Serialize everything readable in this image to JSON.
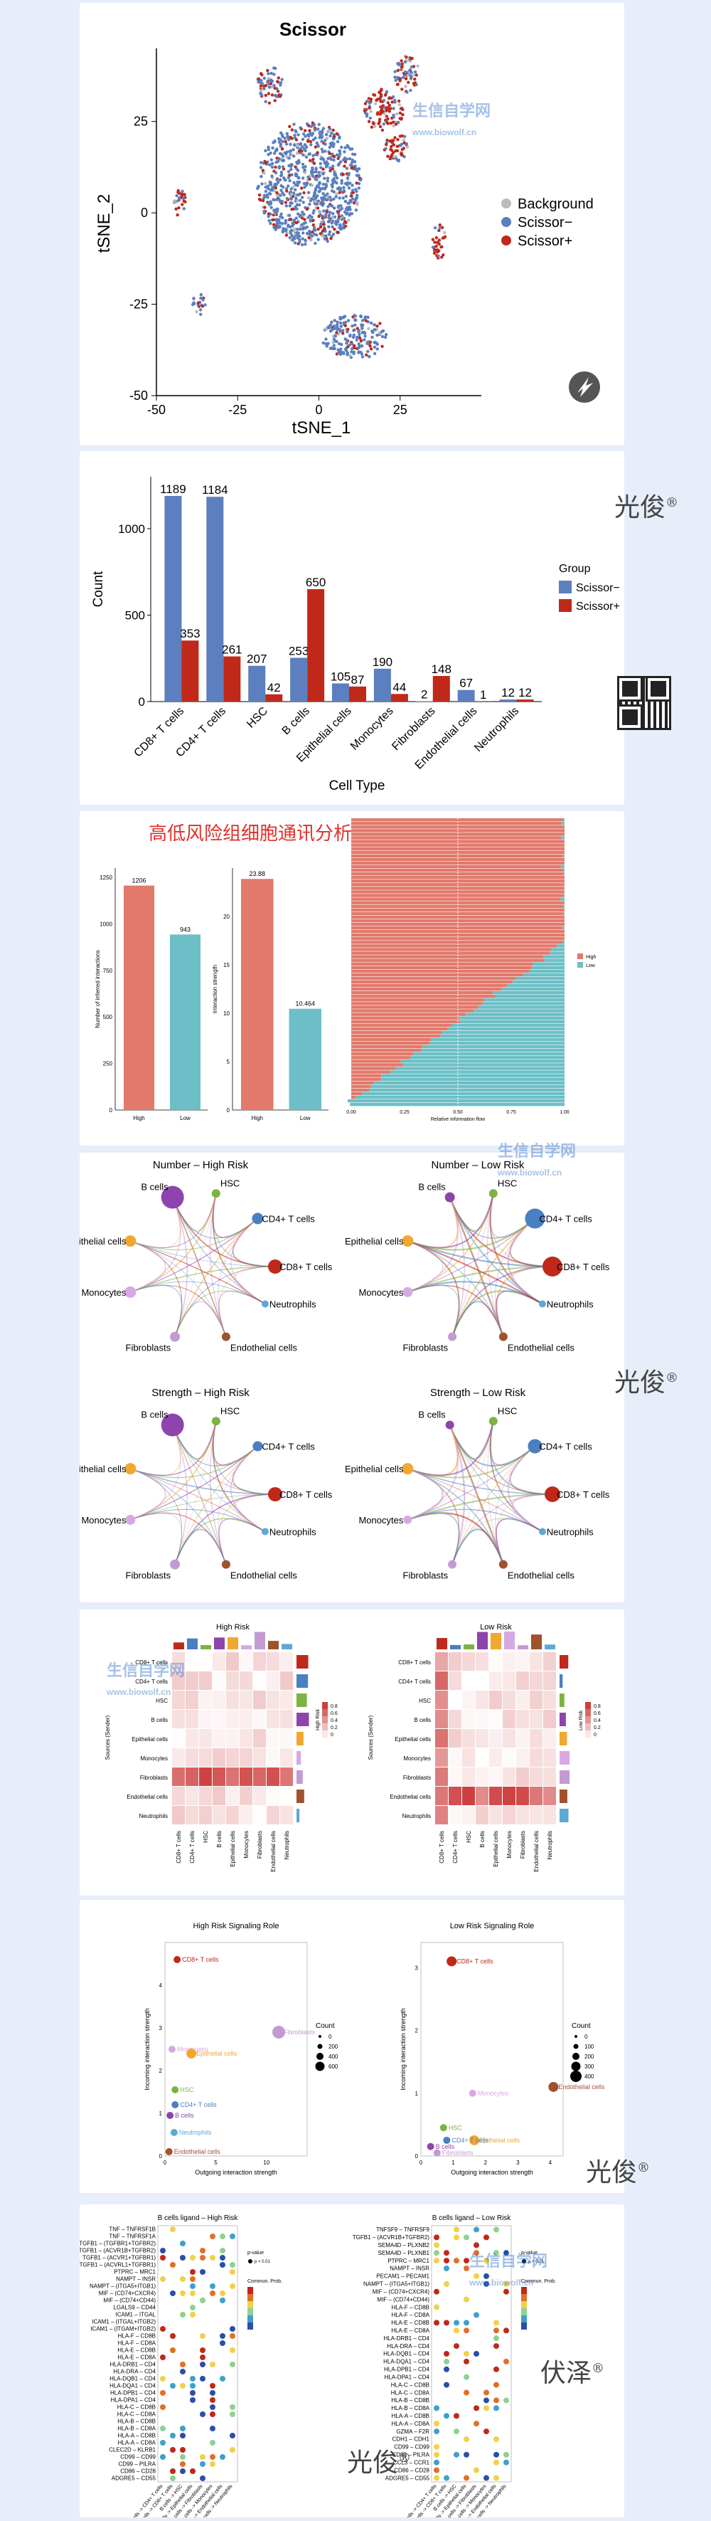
{
  "watermarks": {
    "brand1": "光俊",
    "brand2": "伏泽",
    "reg": "®",
    "site": "生信自学网",
    "site_url": "www.biowolf.cn"
  },
  "colors": {
    "blue": "#5b7fbf",
    "red": "#c0281a",
    "grey": "#bbbbbb",
    "salmon": "#e2796b",
    "teal": "#6cbfc6"
  },
  "cell_types": [
    "CD8+ T cells",
    "CD4+ T cells",
    "HSC",
    "B cells",
    "Epithelial cells",
    "Monocytes",
    "Fibroblasts",
    "Endothelial cells",
    "Neutrophils"
  ],
  "panel_tsne": {
    "chart_data": {
      "type": "scatter",
      "title": "Scissor",
      "xlabel": "tSNE_1",
      "ylabel": "tSNE_2",
      "xlim": [
        -50,
        50
      ],
      "ylim": [
        -50,
        45
      ],
      "xticks": [
        "-50",
        "-25",
        "0",
        "25"
      ],
      "yticks": [
        "-50",
        "-25",
        "0",
        "25"
      ],
      "legend_position": "right",
      "series": [
        {
          "name": "Background",
          "color": "#bbbbbb"
        },
        {
          "name": "Scissor−",
          "color": "#5b7fbf"
        },
        {
          "name": "Scissor+",
          "color": "#c0281a"
        }
      ],
      "clusters": [
        {
          "cx": -3,
          "cy": 8,
          "rx": 16,
          "ry": 17,
          "mix": "blue"
        },
        {
          "cx": 20,
          "cy": 28,
          "rx": 6,
          "ry": 6,
          "mix": "red"
        },
        {
          "cx": 24,
          "cy": 18,
          "rx": 4,
          "ry": 4,
          "mix": "red"
        },
        {
          "cx": 27,
          "cy": 38,
          "rx": 4,
          "ry": 5,
          "mix": "mixed"
        },
        {
          "cx": -15,
          "cy": 35,
          "rx": 4,
          "ry": 5,
          "mix": "mixed"
        },
        {
          "cx": 11,
          "cy": -34,
          "rx": 10,
          "ry": 6,
          "mix": "blue"
        },
        {
          "cx": -43,
          "cy": 3,
          "rx": 2,
          "ry": 4,
          "mix": "red"
        },
        {
          "cx": 37,
          "cy": -8,
          "rx": 2,
          "ry": 5,
          "mix": "red"
        },
        {
          "cx": -37,
          "cy": -25,
          "rx": 2,
          "ry": 3,
          "mix": "blue"
        }
      ]
    }
  },
  "panel_bar": {
    "chart_data": {
      "type": "bar",
      "categories": [
        "CD8+ T cells",
        "CD4+ T cells",
        "HSC",
        "B cells",
        "Epithelial cells",
        "Monocytes",
        "Fibroblasts",
        "Endothelial cells",
        "Neutrophils"
      ],
      "series": [
        {
          "name": "Scissor−",
          "color": "#5b7fbf",
          "values": [
            1189,
            1184,
            207,
            253,
            105,
            190,
            2,
            67,
            12
          ]
        },
        {
          "name": "Scissor+",
          "color": "#c0281a",
          "values": [
            353,
            261,
            42,
            650,
            87,
            44,
            148,
            1,
            12
          ]
        }
      ],
      "xlabel": "Cell Type",
      "ylabel": "Count",
      "ylim": [
        0,
        1300
      ],
      "yticks": [
        0,
        500,
        1000
      ],
      "legend_title": "Group"
    }
  },
  "panel_comm": {
    "title": "高低风险组细胞通讯分析",
    "chart_data": [
      {
        "type": "bar",
        "categories": [
          "High",
          "Low"
        ],
        "values": [
          1206,
          943
        ],
        "ylabel": "Number of inferred interactions",
        "ylim": [
          0,
          1300
        ],
        "yticks": [
          0,
          250,
          500,
          750,
          1000,
          1250
        ],
        "colors": [
          "#e2796b",
          "#6cbfc6"
        ]
      },
      {
        "type": "bar",
        "categories": [
          "High",
          "Low"
        ],
        "values": [
          23.88,
          10.464
        ],
        "ylabel": "Interaction strength",
        "ylim": [
          0,
          25
        ],
        "yticks": [
          0,
          5,
          10,
          15,
          20
        ],
        "colors": [
          "#e2796b",
          "#6cbfc6"
        ]
      },
      {
        "type": "bar",
        "xlabel": "Relative information flow",
        "xticks": [
          "0.00",
          "0.25",
          "0.50",
          "0.75",
          "1.00"
        ],
        "legend": [
          "High",
          "Low"
        ]
      }
    ]
  },
  "panel_network": {
    "titles": [
      "Number – High Risk",
      "Number – Low Risk",
      "Strength – High Risk",
      "Strength – Low Risk"
    ],
    "node_labels": [
      "B cells",
      "HSC",
      "CD4+ T cells",
      "CD8+ T cells",
      "Neutrophils",
      "Endothelial cells",
      "Fibroblasts",
      "Monocytes",
      "Epithelial cells"
    ],
    "node_colors": [
      "#8e44ad",
      "#7cb342",
      "#4a7fc1",
      "#c0281a",
      "#5fa8d3",
      "#a0522d",
      "#c39bd3",
      "#d7a9e3",
      "#f0a830"
    ]
  },
  "panel_heatmap": {
    "chart_data": [
      {
        "type": "heatmap",
        "title": "High Risk",
        "ylabel": "Sources (Sender)",
        "legend_title": "High Risk",
        "legend_ticks": [
          "0.8",
          "0.6",
          "0.4",
          "0.2",
          "0"
        ]
      },
      {
        "type": "heatmap",
        "title": "Low Risk",
        "ylabel": "Sources (Sender)",
        "legend_title": "Low Risk",
        "legend_ticks": [
          "0.8",
          "0.6",
          "0.4",
          "0.2",
          "0"
        ]
      }
    ]
  },
  "panel_role": {
    "chart_data": [
      {
        "type": "scatter",
        "title": "High Risk Signaling Role",
        "xlabel": "Outgoing interaction strength",
        "ylabel": "Incoming interaction strength",
        "xlim": [
          0,
          14
        ],
        "ylim": [
          0,
          5
        ],
        "xticks": [
          0,
          5,
          10
        ],
        "yticks": [
          0,
          1,
          2,
          3,
          4
        ],
        "points": [
          {
            "label": "CD8+ T cells",
            "x": 1.2,
            "y": 4.6,
            "color": "#c0281a",
            "size": 1
          },
          {
            "label": "Monocytes",
            "x": 0.7,
            "y": 2.5,
            "color": "#d7a9e3",
            "size": 1
          },
          {
            "label": "Epithelial cells",
            "x": 2.6,
            "y": 2.4,
            "color": "#f0a830",
            "size": 2
          },
          {
            "label": "Fibroblasts",
            "x": 11.2,
            "y": 2.9,
            "color": "#c39bd3",
            "size": 3
          },
          {
            "label": "CD4+ T cells",
            "x": 1.0,
            "y": 1.2,
            "color": "#4a7fc1",
            "size": 1
          },
          {
            "label": "B cells",
            "x": 0.5,
            "y": 0.95,
            "color": "#8e44ad",
            "size": 1
          },
          {
            "label": "HSC",
            "x": 1.0,
            "y": 1.55,
            "color": "#7cb342",
            "size": 1
          },
          {
            "label": "Neutrophils",
            "x": 0.9,
            "y": 0.55,
            "color": "#5fa8d3",
            "size": 1
          },
          {
            "label": "Endothelial cells",
            "x": 0.4,
            "y": 0.1,
            "color": "#a0522d",
            "size": 1
          }
        ],
        "legend_title": "Count",
        "legend_values": [
          "0",
          "200",
          "400",
          "600"
        ]
      },
      {
        "type": "scatter",
        "title": "Low Risk Signaling Role",
        "xlabel": "Outgoing interaction strength",
        "ylabel": "Incoming interaction strength",
        "xlim": [
          0,
          4.4
        ],
        "ylim": [
          0,
          3.4
        ],
        "xticks": [
          0,
          1,
          2,
          3,
          4
        ],
        "yticks": [
          0,
          1,
          2,
          3
        ],
        "points": [
          {
            "label": "CD8+ T cells",
            "x": 0.95,
            "y": 3.1,
            "color": "#c0281a",
            "size": 2
          },
          {
            "label": "Endothelial cells",
            "x": 4.1,
            "y": 1.1,
            "color": "#a0522d",
            "size": 2
          },
          {
            "label": "Monocytes",
            "x": 1.6,
            "y": 1.0,
            "color": "#d7a9e3",
            "size": 1
          },
          {
            "label": "Epithelial cells",
            "x": 1.65,
            "y": 0.25,
            "color": "#f0a830",
            "size": 2
          },
          {
            "label": "CD4+ T cells",
            "x": 0.8,
            "y": 0.25,
            "color": "#4a7fc1",
            "size": 1
          },
          {
            "label": "HSC",
            "x": 0.7,
            "y": 0.45,
            "color": "#7cb342",
            "size": 1
          },
          {
            "label": "B cells",
            "x": 0.3,
            "y": 0.15,
            "color": "#8e44ad",
            "size": 1
          },
          {
            "label": "Fibroblasts",
            "x": 0.5,
            "y": 0.05,
            "color": "#c39bd3",
            "size": 1
          }
        ],
        "legend_title": "Count",
        "legend_values": [
          "0",
          "100",
          "200",
          "300",
          "400"
        ]
      }
    ]
  },
  "panel_dot": {
    "chart_data": [
      {
        "type": "scatter",
        "title": "B cells ligand – High Risk",
        "ylabels": [
          "TNF – TNFRSF1B",
          "TNF – TNFRSF1A",
          "TGFB1 – (TGFBR1+TGFBR2)",
          "TGFB1 – (ACVR1B+TGFBR2)",
          "TGFB1 – (ACVR1+TGFBR1)",
          "TGFB1 – (ACVRL1+TGFBR1)",
          "PTPRC – MRC1",
          "NAMPT – INSR",
          "NAMPT – (ITGA5+ITGB1)",
          "MIF – (CD74+CXCR4)",
          "MIF – (CD74+CD44)",
          "LGALS9 – CD44",
          "ICAM1 – ITGAL",
          "ICAM1 – (ITGAL+ITGB2)",
          "ICAM1 – (ITGAM+ITGB2)",
          "HLA-F – CD8B",
          "HLA-F – CD8A",
          "HLA-E – CD8B",
          "HLA-E – CD8A",
          "HLA-DRB1 – CD4",
          "HLA-DRA – CD4",
          "HLA-DQB1 – CD4",
          "HLA-DQA1 – CD4",
          "HLA-DPB1 – CD4",
          "HLA-DPA1 – CD4",
          "HLA-C – CD8B",
          "HLA-C – CD8A",
          "HLA-B – CD8B",
          "HLA-B – CD8A",
          "HLA-A – CD8B",
          "HLA-A – CD8A",
          "CLEC2D – KLRB1",
          "CD99 – CD99",
          "CD99 – PILRA",
          "CD86 – CD28",
          "ADGRE5 – CD55"
        ],
        "xlabels": [
          "B cells -> CD4+ T cells",
          "B cells -> CD8+ T cells",
          "B cells -> HSC",
          "B cells -> Epithelial cells",
          "B cells -> Fibroblasts",
          "B cells -> Monocytes",
          "B cells -> Endothelial cells",
          "B cells -> Neutrophils"
        ],
        "legend_prob": "Commun. Prob.",
        "legend_pval": "p-value",
        "pval_label": "p < 0.01"
      },
      {
        "type": "scatter",
        "title": "B cells ligand – Low Risk",
        "ylabels": [
          "TNFSF9 – TNFRSF9",
          "TGFB1 – (ACVR1B+TGFBR2)",
          "SEMA4D – PLXNB2",
          "SEMA4D – PLXNB1",
          "PTPRC – MRC1",
          "NAMPT – INSR",
          "PECAM1 – PECAM1",
          "NAMPT – (ITGA5+ITGB1)",
          "MIF – (CD74+CXCR4)",
          "MIF – (CD74+CD44)",
          "HLA-F – CD8B",
          "HLA-F – CD8A",
          "HLA-E – CD8B",
          "HLA-E – CD8A",
          "HLA-DRB1 – CD4",
          "HLA-DRA – CD4",
          "HLA-DQB1 – CD4",
          "HLA-DQA1 – CD4",
          "HLA-DPB1 – CD4",
          "HLA-DPA1 – CD4",
          "HLA-C – CD8B",
          "HLA-C – CD8A",
          "HLA-B – CD8B",
          "HLA-B – CD8A",
          "HLA-A – CD8B",
          "HLA-A – CD8A",
          "GZMA – F2R",
          "CDH1 – CDH1",
          "CD99 – CD99",
          "CD99 – PILRA",
          "CCL3 – CCR1",
          "CD86 – CD28",
          "ADGRE5 – CD55"
        ],
        "xlabels": [
          "B cells -> CD4+ T cells",
          "B cells -> CD8+ T cells",
          "B cells -> HSC",
          "B cells -> Epithelial cells",
          "B cells -> Fibroblasts",
          "B cells -> Monocytes",
          "B cells -> Endothelial cells",
          "B cells -> Neutrophils"
        ],
        "legend_prob": "Commun. Prob.",
        "legend_pval": "p-value",
        "pval_label": "p < 0.01"
      }
    ]
  }
}
